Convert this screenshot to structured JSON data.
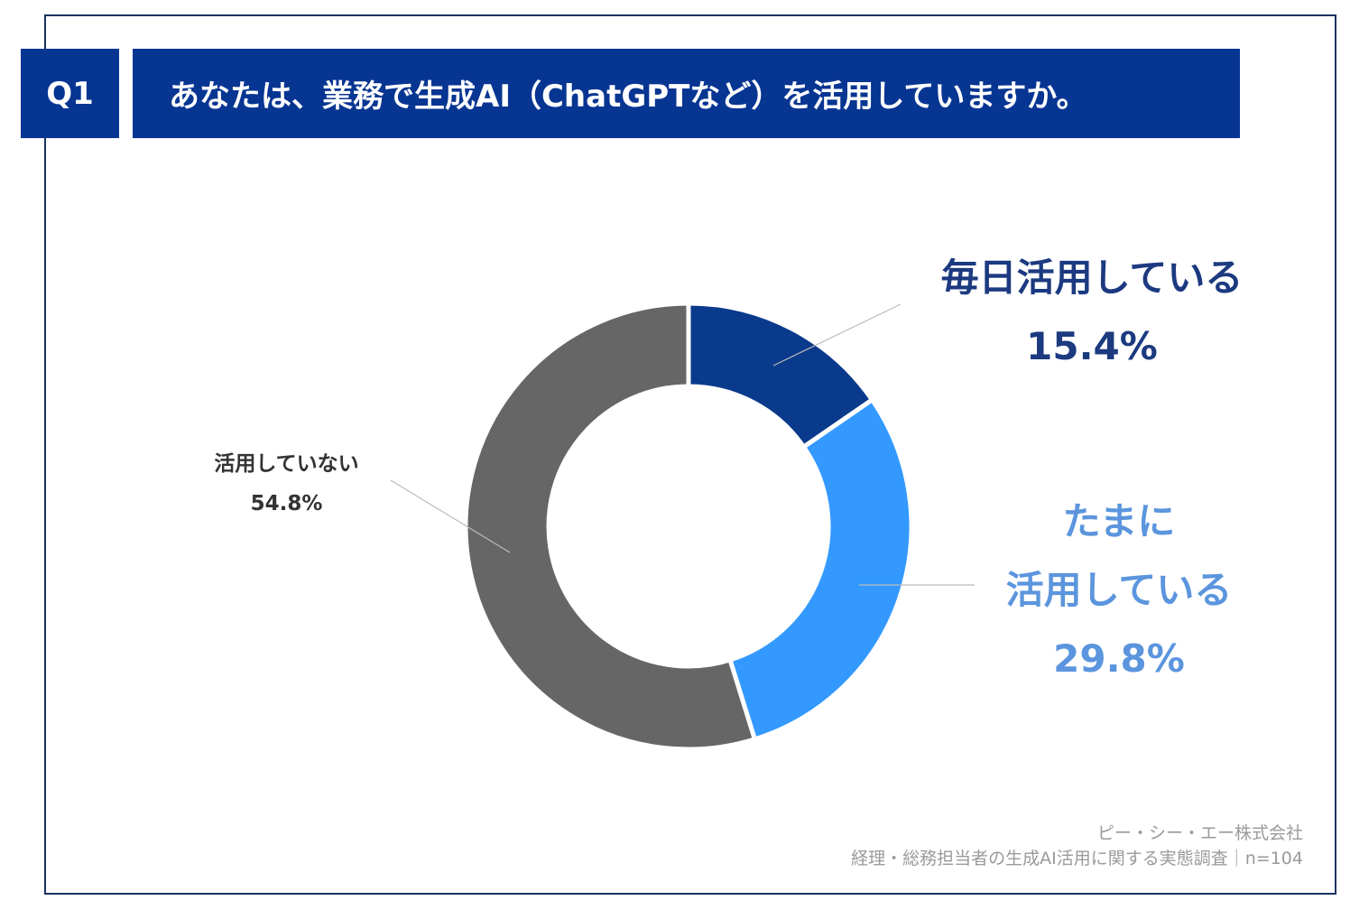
{
  "header": {
    "question_number": "Q1",
    "question": "あなたは、業務で生成AI（ChatGPTなど）を活用していますか。"
  },
  "chart_data": {
    "type": "pie",
    "donut": true,
    "start": "top, clockwise",
    "slices": [
      {
        "label": "毎日活用している",
        "value": 15.4,
        "value_label": "15.4%",
        "color": "#0a3a8c"
      },
      {
        "label_line1": "たまに",
        "label_line2": "活用している",
        "value": 29.8,
        "value_label": "29.8%",
        "color": "#3399ff"
      },
      {
        "label": "活用していない",
        "value": 54.8,
        "value_label": "54.8%",
        "color": "#666666"
      }
    ]
  },
  "footer": {
    "company": "ピー・シー・エー株式会社",
    "survey": "経理・総務担当者の生成AI活用に関する実態調査｜n=104"
  }
}
